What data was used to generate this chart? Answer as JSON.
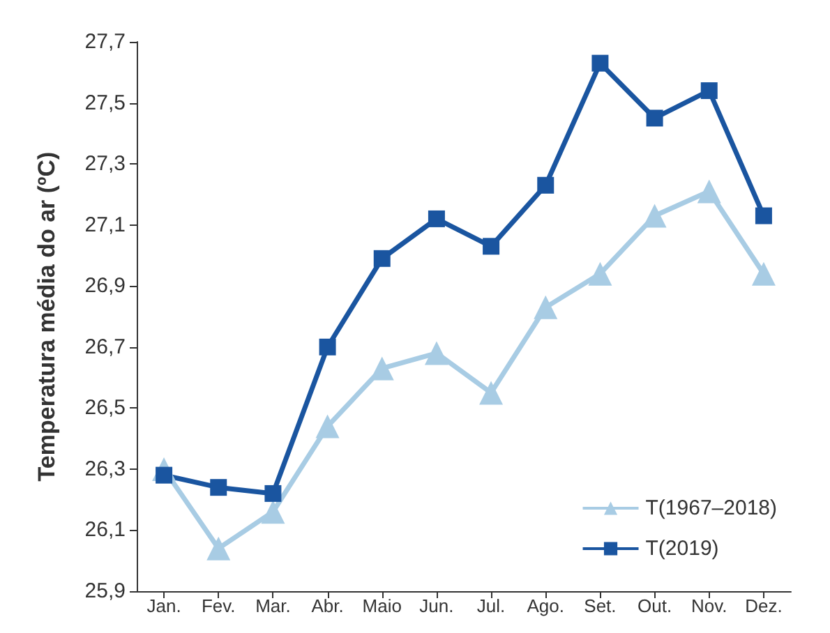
{
  "chart_data": {
    "type": "line",
    "ylabel": "Temperatura média do ar (ºC)",
    "categories": [
      "Jan.",
      "Fev.",
      "Mar.",
      "Abr.",
      "Maio",
      "Jun.",
      "Jul.",
      "Ago.",
      "Set.",
      "Out.",
      "Nov.",
      "Dez."
    ],
    "series": [
      {
        "name": "T(1967–2018)",
        "color": "#a8cce4",
        "marker": "triangle",
        "values": [
          26.3,
          26.04,
          26.16,
          26.44,
          26.63,
          26.68,
          26.55,
          26.83,
          26.94,
          27.13,
          27.21,
          26.94
        ]
      },
      {
        "name": "T(2019)",
        "color": "#1a55a0",
        "marker": "square",
        "values": [
          26.28,
          26.24,
          26.22,
          26.7,
          26.99,
          27.12,
          27.03,
          27.23,
          27.63,
          27.45,
          27.54,
          27.13
        ]
      }
    ],
    "ylim": [
      25.9,
      27.7
    ],
    "yticks": [
      {
        "value": 25.9,
        "label": "25,9"
      },
      {
        "value": 26.1,
        "label": "26,1"
      },
      {
        "value": 26.3,
        "label": "26,3"
      },
      {
        "value": 26.5,
        "label": "26,5"
      },
      {
        "value": 26.7,
        "label": "26,7"
      },
      {
        "value": 26.9,
        "label": "26,9"
      },
      {
        "value": 27.1,
        "label": "27,1"
      },
      {
        "value": 27.3,
        "label": "27,3"
      },
      {
        "value": 27.5,
        "label": "27,5"
      },
      {
        "value": 27.7,
        "label": "27,7"
      }
    ],
    "grid": false,
    "legend": "bottom right",
    "line_style": "solid"
  }
}
